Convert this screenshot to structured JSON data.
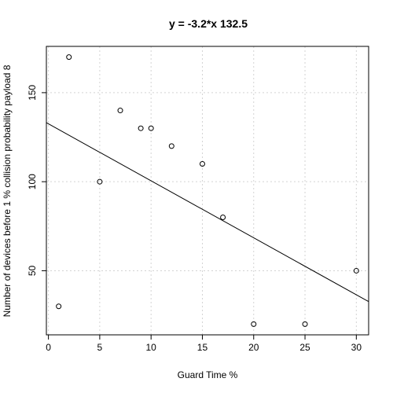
{
  "chart_data": {
    "type": "scatter",
    "title": "y = -3.2*x 132.5",
    "xlabel": "Guard Time %",
    "ylabel": "Number of devices before  1 % collision probability payload 8",
    "xlim": [
      -0.2,
      31.2
    ],
    "ylim": [
      14,
      176
    ],
    "xticks": [
      0,
      5,
      10,
      15,
      20,
      25,
      30
    ],
    "yticks": [
      50,
      100,
      150
    ],
    "grid": true,
    "points": [
      {
        "x": 1,
        "y": 30
      },
      {
        "x": 2,
        "y": 170
      },
      {
        "x": 5,
        "y": 100
      },
      {
        "x": 7,
        "y": 140
      },
      {
        "x": 9,
        "y": 130
      },
      {
        "x": 10,
        "y": 130
      },
      {
        "x": 12,
        "y": 120
      },
      {
        "x": 15,
        "y": 110
      },
      {
        "x": 17,
        "y": 80
      },
      {
        "x": 20,
        "y": 20
      },
      {
        "x": 25,
        "y": 20
      },
      {
        "x": 30,
        "y": 50
      }
    ],
    "fit": {
      "slope": -3.2,
      "intercept": 132.5
    }
  }
}
